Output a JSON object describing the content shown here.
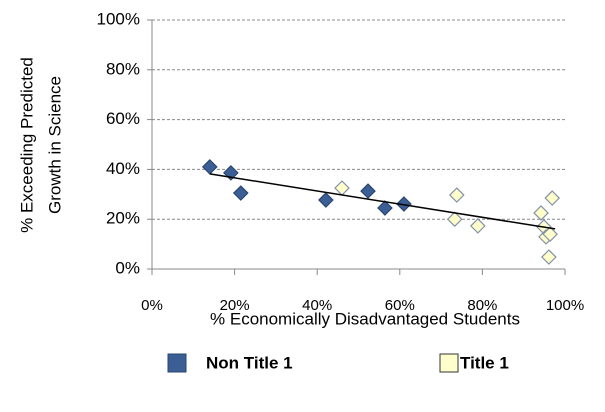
{
  "chart_data": {
    "type": "scatter",
    "x_label": "% Economically Disadvantaged Students",
    "y_label": [
      "% Exceeding Predicted",
      "Growth in Science"
    ],
    "xlim": [
      0,
      100
    ],
    "xticks": [
      {
        "value": 0,
        "label": "0%"
      },
      {
        "value": 20,
        "label": "20%"
      },
      {
        "value": 40,
        "label": "40%"
      },
      {
        "value": 60,
        "label": "60%"
      },
      {
        "value": 80,
        "label": "80%"
      },
      {
        "value": 100,
        "label": "100%"
      }
    ],
    "ylim": [
      0,
      100
    ],
    "yticks": [
      {
        "value": 0,
        "label": "0%"
      },
      {
        "value": 20,
        "label": "20%"
      },
      {
        "value": 40,
        "label": "40%"
      },
      {
        "value": 60,
        "label": "60%"
      },
      {
        "value": 80,
        "label": "80%"
      },
      {
        "value": 100,
        "label": "100%"
      }
    ],
    "grid": true,
    "legend": "bottom",
    "series": [
      {
        "name": "Non Title 1",
        "color": "#3b5f95",
        "stroke": "#2a4670",
        "x": [
          14.0,
          19.1,
          21.5,
          42.1,
          52.3,
          56.4,
          61.0
        ],
        "values": [
          41,
          38.6,
          30.5,
          27.7,
          31.3,
          24.5,
          26.1
        ]
      },
      {
        "name": "Title 1",
        "color": "#ffffcc",
        "stroke": "#8391a8",
        "x": [
          46.0,
          73.8,
          73.3,
          78.9,
          94.2,
          94.9,
          95.4,
          96.4,
          96.9,
          96.1
        ],
        "values": [
          32.5,
          29.7,
          20,
          17.3,
          22.5,
          16.9,
          12.9,
          14,
          28.5,
          4.8
        ]
      }
    ],
    "trendline": {
      "color": "#000000",
      "x": [
        14,
        97.6
      ],
      "values": [
        38.2,
        16.1
      ]
    }
  }
}
